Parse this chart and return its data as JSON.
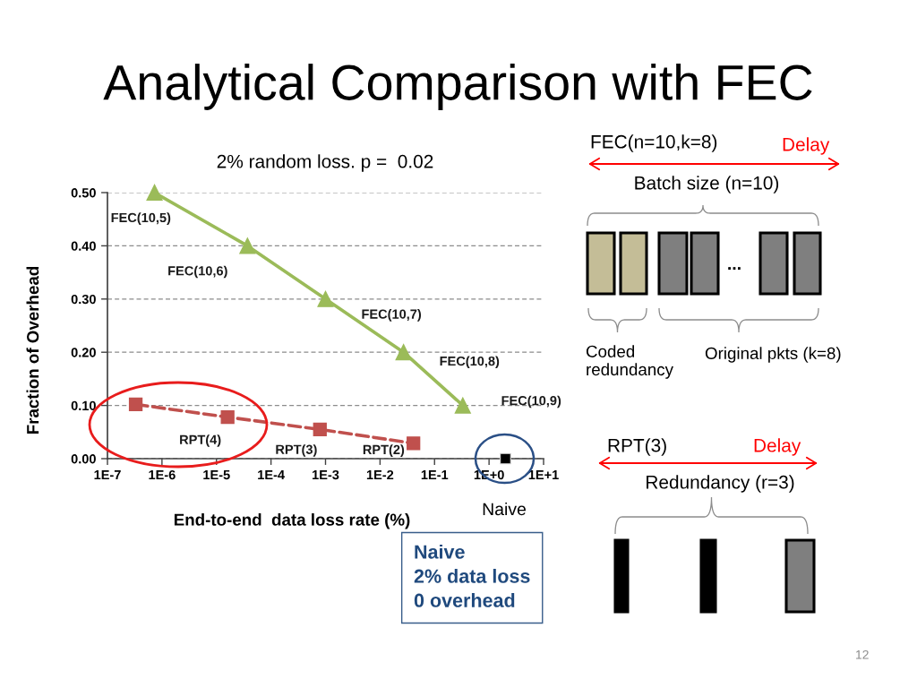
{
  "chart_data": {
    "type": "line",
    "title": "Analytical Comparison with FEC",
    "subtitle": "2% random loss. p =  0.02",
    "xlabel": "End-to-end  data loss rate (%)",
    "ylabel": "Fraction of Overhead",
    "log": "x",
    "xlim": [
      1e-07,
      10
    ],
    "xticks": [
      {
        "value": 1e-07,
        "label": "1E-7"
      },
      {
        "value": 1e-06,
        "label": "1E-6"
      },
      {
        "value": 1e-05,
        "label": "1E-5"
      },
      {
        "value": 0.0001,
        "label": "1E-4"
      },
      {
        "value": 0.001,
        "label": "1E-3"
      },
      {
        "value": 0.01,
        "label": "1E-2"
      },
      {
        "value": 0.1,
        "label": "1E-1"
      },
      {
        "value": 1,
        "label": "1E+0"
      },
      {
        "value": 10,
        "label": "1E+1"
      }
    ],
    "ylim": [
      0,
      0.5
    ],
    "yticks": [
      {
        "value": 0,
        "label": "0.00"
      },
      {
        "value": 0.1,
        "label": "0.10"
      },
      {
        "value": 0.2,
        "label": "0.20"
      },
      {
        "value": 0.3,
        "label": "0.30"
      },
      {
        "value": 0.4,
        "label": "0.40"
      },
      {
        "value": 0.5,
        "label": "0.50"
      }
    ],
    "grid": "y",
    "series": [
      {
        "color": "#9bbb59",
        "marker": "triangle",
        "line_style": "solid",
        "x": [
          7.3e-07,
          3.7e-05,
          0.001,
          0.027,
          0.33
        ],
        "values": [
          0.5,
          0.4,
          0.3,
          0.2,
          0.1
        ]
      },
      {
        "color": "#c0504d",
        "marker": "square",
        "line_style": "dashed",
        "x": [
          3.3e-07,
          1.6e-05,
          0.00079,
          0.041
        ],
        "values": [
          0.102,
          0.078,
          0.055,
          0.029
        ]
      },
      {
        "type": "scatter",
        "color": "#000000",
        "marker": "square",
        "x": [
          2
        ],
        "values": [
          0
        ]
      }
    ],
    "annotations": [
      {
        "text": "FEC(10,5)",
        "x": 7.3e-07,
        "y": 0.5
      },
      {
        "text": "FEC(10,6)",
        "x": 3.7e-05,
        "y": 0.4
      },
      {
        "text": "FEC(10,7)",
        "x": 0.001,
        "y": 0.3
      },
      {
        "text": "FEC(10,8)",
        "x": 0.027,
        "y": 0.2
      },
      {
        "text": "FEC(10,9)",
        "x": 0.33,
        "y": 0.1
      },
      {
        "text": "RPT(4)",
        "x": 1.6e-05,
        "y": 0.078
      },
      {
        "text": "RPT(3)",
        "x": 0.00079,
        "y": 0.055
      },
      {
        "text": "RPT(2)",
        "x": 0.041,
        "y": 0.029
      },
      "Naive",
      "FEC(n=10,k=8)",
      "Delay",
      "Batch size (n=10)",
      "...",
      "Coded\nredundancy",
      "Original pkts (k=8)",
      "RPT(3)",
      "Delay",
      "Redundancy (r=3)",
      "Naive\n2% data loss\n0 overhead",
      "12"
    ]
  }
}
